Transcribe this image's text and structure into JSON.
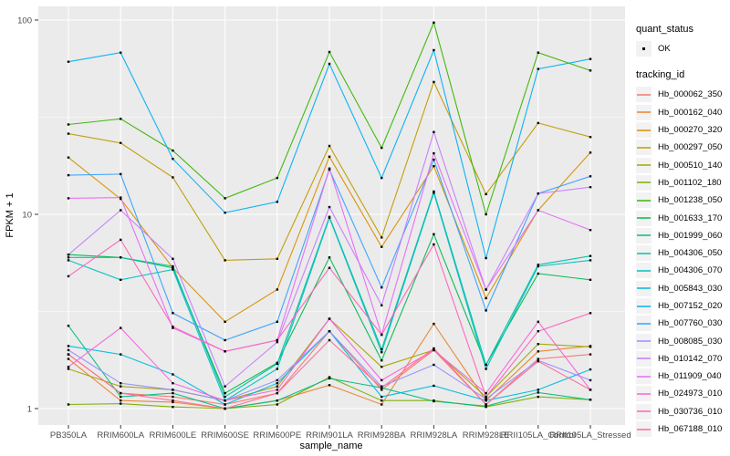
{
  "figure": {
    "background": "#FFFFFF",
    "panel_background": "#EBEBEB",
    "grid_color": "#FFFFFF",
    "tick_mark_color": "#333333",
    "axis_text_color": "#4D4D4D",
    "point_color": "#000000",
    "legend_key_background": "#F2F2F2"
  },
  "axes": {
    "x_title": "sample_name",
    "y_title": "FPKM + 1",
    "y_tick_labels": [
      "1",
      "10",
      "100"
    ]
  },
  "legend": {
    "quant_status_title": "quant_status",
    "quant_status_items": [
      "OK"
    ],
    "tracking_id_title": "tracking_id"
  },
  "chart_data": {
    "type": "line",
    "y_scale": "log10",
    "title": "",
    "xlabel": "sample_name",
    "ylabel": "FPKM + 1",
    "ylim": [
      0.85,
      115
    ],
    "grid": true,
    "legend_position": "right",
    "point_shape": "small black square (quant_status = OK)",
    "categories": [
      "PB350LA",
      "RRIM600LA",
      "RRIM600LE",
      "RRIM600SE",
      "RRIM600PE",
      "RRIM901LA",
      "RRIM928BA",
      "RRIM928LA",
      "RRIM928LE",
      "RRII105LA_Control",
      "RRII105LA_Stressed"
    ],
    "y_major_breaks": [
      1,
      10,
      100
    ],
    "y_minor_breaks": [
      3.162,
      31.623
    ],
    "series": [
      {
        "name": "Hb_000062_350",
        "color": "#F8766D",
        "values": [
          1.9,
          1.2,
          1.15,
          1.05,
          1.2,
          2.5,
          1.25,
          2.0,
          1.05,
          1.8,
          1.9
        ]
      },
      {
        "name": "Hb_000162_040",
        "color": "#EA8331",
        "values": [
          1.8,
          1.1,
          1.08,
          1.0,
          1.1,
          1.32,
          1.05,
          2.73,
          1.1,
          1.97,
          2.1
        ]
      },
      {
        "name": "Hb_000270_320",
        "color": "#D89000",
        "values": [
          19.6,
          12.0,
          5.3,
          2.8,
          4.1,
          19.8,
          6.8,
          17.7,
          3.7,
          10.5,
          20.8
        ]
      },
      {
        "name": "Hb_000297_050",
        "color": "#C09B00",
        "values": [
          26.0,
          23.3,
          15.5,
          5.8,
          5.9,
          22.5,
          7.6,
          48.0,
          12.7,
          29.5,
          25.0
        ]
      },
      {
        "name": "Hb_000510_140",
        "color": "#A3A500",
        "values": [
          1.6,
          1.3,
          1.25,
          1.1,
          1.3,
          2.9,
          1.64,
          2.0,
          1.15,
          2.15,
          2.08
        ]
      },
      {
        "name": "Hb_001102_180",
        "color": "#7CAE00",
        "values": [
          1.05,
          1.06,
          1.02,
          1.0,
          1.05,
          1.45,
          1.1,
          1.1,
          1.02,
          1.15,
          1.11
        ]
      },
      {
        "name": "Hb_001238_050",
        "color": "#39B600",
        "values": [
          29.0,
          31.0,
          21.3,
          12.1,
          15.4,
          68.5,
          22.0,
          97.0,
          10.0,
          68.0,
          55.0
        ]
      },
      {
        "name": "Hb_001633_170",
        "color": "#00BB4E",
        "values": [
          6.2,
          6.0,
          5.3,
          1.2,
          1.72,
          6.0,
          1.77,
          7.9,
          1.68,
          4.95,
          4.6
        ]
      },
      {
        "name": "Hb_001999_060",
        "color": "#00BF7D",
        "values": [
          2.67,
          1.15,
          1.2,
          1.0,
          1.1,
          1.43,
          1.28,
          1.09,
          1.03,
          1.21,
          1.11
        ]
      },
      {
        "name": "Hb_004306_050",
        "color": "#00C1A3",
        "values": [
          6.0,
          6.0,
          5.4,
          1.15,
          1.7,
          9.7,
          2.02,
          13.1,
          1.68,
          5.5,
          6.1
        ]
      },
      {
        "name": "Hb_004306_070",
        "color": "#00BFC4",
        "values": [
          5.8,
          4.6,
          5.2,
          1.1,
          1.6,
          9.6,
          1.95,
          12.9,
          1.6,
          5.4,
          5.8
        ]
      },
      {
        "name": "Hb_005843_030",
        "color": "#00BAE0",
        "values": [
          2.1,
          1.9,
          1.5,
          1.05,
          1.35,
          2.5,
          1.15,
          1.31,
          1.1,
          1.25,
          1.59
        ]
      },
      {
        "name": "Hb_007152_020",
        "color": "#00B0F6",
        "values": [
          61.0,
          68.0,
          19.3,
          10.2,
          11.6,
          59.5,
          15.4,
          70.0,
          5.95,
          56.0,
          63.0
        ]
      },
      {
        "name": "Hb_007760_030",
        "color": "#35A2FF",
        "values": [
          15.9,
          16.1,
          3.1,
          2.25,
          2.8,
          17.0,
          4.2,
          19.1,
          3.2,
          12.8,
          15.7
        ]
      },
      {
        "name": "Hb_008085_030",
        "color": "#9590FF",
        "values": [
          2.0,
          1.35,
          1.25,
          1.1,
          1.4,
          2.5,
          1.3,
          1.68,
          1.12,
          1.77,
          1.4
        ]
      },
      {
        "name": "Hb_010142_070",
        "color": "#C77CFF",
        "values": [
          6.2,
          10.5,
          5.9,
          1.3,
          2.2,
          10.9,
          3.4,
          26.5,
          4.1,
          12.8,
          13.8
        ]
      },
      {
        "name": "Hb_011909_040",
        "color": "#E76BF3",
        "values": [
          12.1,
          12.2,
          2.6,
          1.97,
          2.25,
          17.2,
          2.4,
          20.6,
          4.1,
          10.5,
          8.3
        ]
      },
      {
        "name": "Hb_024973_010",
        "color": "#FA62DB",
        "values": [
          1.64,
          2.6,
          1.35,
          1.1,
          1.25,
          2.9,
          1.4,
          2.0,
          1.2,
          2.8,
          1.25
        ]
      },
      {
        "name": "Hb_030736_010",
        "color": "#FF62BC",
        "values": [
          4.8,
          7.4,
          2.64,
          1.97,
          2.25,
          5.3,
          2.4,
          7.0,
          1.15,
          2.5,
          3.1
        ]
      },
      {
        "name": "Hb_067188_010",
        "color": "#FF6A98",
        "values": [
          1.9,
          1.2,
          1.1,
          1.0,
          1.2,
          2.25,
          1.28,
          2.04,
          1.05,
          1.75,
          1.25
        ]
      }
    ]
  }
}
